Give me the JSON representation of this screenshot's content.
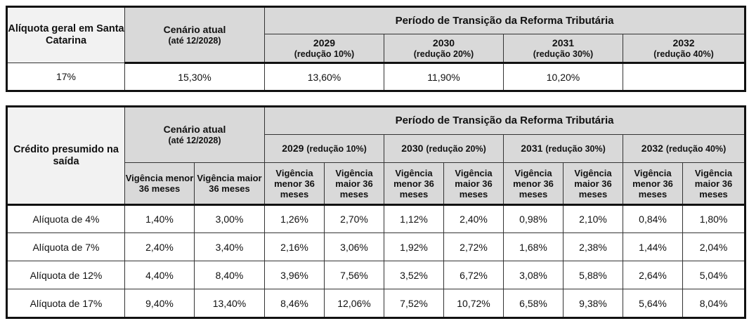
{
  "table1": {
    "row_header": "Alíquota geral em Santa Catarina",
    "current": {
      "title": "Cenário atual",
      "subtitle": "(até 12/2028)"
    },
    "transition_title": "Período de Transição da Reforma Tributária",
    "years": [
      {
        "year": "2029",
        "note": "(redução 10%)"
      },
      {
        "year": "2030",
        "note": "(redução 20%)"
      },
      {
        "year": "2031",
        "note": "(redução 30%)"
      },
      {
        "year": "2032",
        "note": "(redução 40%)"
      }
    ],
    "values": [
      "17%",
      "15,30%",
      "13,60%",
      "11,90%",
      "10,20%"
    ]
  },
  "table2": {
    "row_header": "Crédito presumido na saída",
    "current": {
      "title": "Cenário atual",
      "subtitle": "(até 12/2028)"
    },
    "transition_title": "Período de Transição da Reforma Tributária",
    "years": [
      {
        "year": "2029",
        "note": "(redução 10%)"
      },
      {
        "year": "2030",
        "note": "(redução 20%)"
      },
      {
        "year": "2031",
        "note": "(redução 30%)"
      },
      {
        "year": "2032",
        "note": "(redução 40%)"
      }
    ],
    "sub_headers": [
      "Vigência menor 36 meses",
      "Vigência maior 36 meses"
    ],
    "rows": [
      {
        "label": "Alíquota de 4%",
        "values": [
          "1,40%",
          "3,00%",
          "1,26%",
          "2,70%",
          "1,12%",
          "2,40%",
          "0,98%",
          "2,10%",
          "0,84%",
          "1,80%"
        ]
      },
      {
        "label": "Alíquota de 7%",
        "values": [
          "2,40%",
          "3,40%",
          "2,16%",
          "3,06%",
          "1,92%",
          "2,72%",
          "1,68%",
          "2,38%",
          "1,44%",
          "2,04%"
        ]
      },
      {
        "label": "Alíquota de 12%",
        "values": [
          "4,40%",
          "8,40%",
          "3,96%",
          "7,56%",
          "3,52%",
          "6,72%",
          "3,08%",
          "5,88%",
          "2,64%",
          "5,04%"
        ]
      },
      {
        "label": "Alíquota de 17%",
        "values": [
          "9,40%",
          "13,40%",
          "8,46%",
          "12,06%",
          "7,52%",
          "10,72%",
          "6,58%",
          "9,38%",
          "5,64%",
          "8,04%"
        ]
      }
    ]
  }
}
